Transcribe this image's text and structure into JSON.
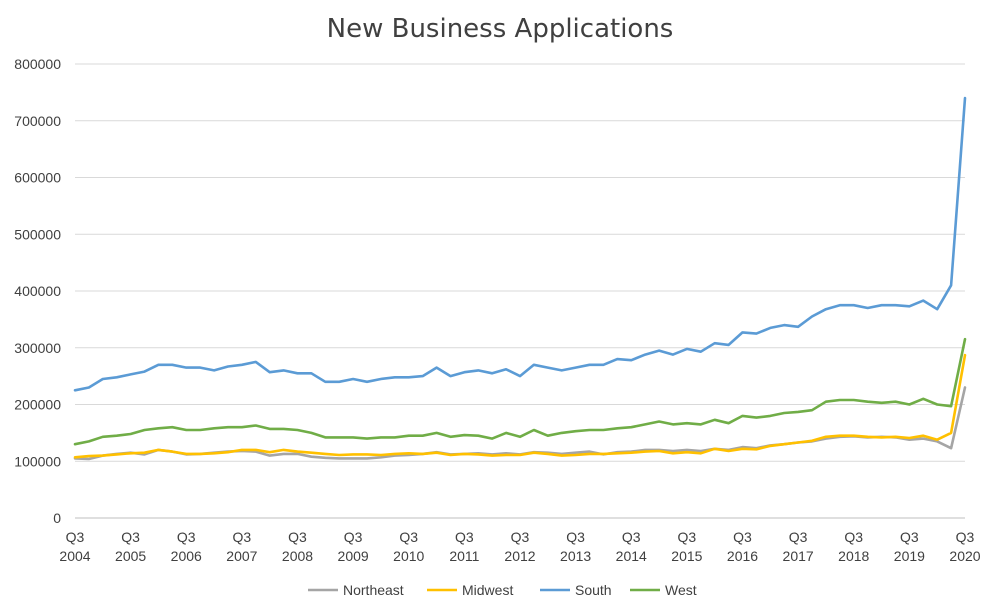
{
  "chart_data": {
    "type": "line",
    "title": "New Business Applications",
    "xlabel": "",
    "ylabel": "",
    "ylim": [
      0,
      800000
    ],
    "y_ticks": [
      "0",
      "100000",
      "200000",
      "300000",
      "400000",
      "500000",
      "600000",
      "700000",
      "800000"
    ],
    "x_tick_labels": [
      [
        "Q3",
        "2004"
      ],
      [
        "Q3",
        "2005"
      ],
      [
        "Q3",
        "2006"
      ],
      [
        "Q3",
        "2007"
      ],
      [
        "Q3",
        "2008"
      ],
      [
        "Q3",
        "2009"
      ],
      [
        "Q3",
        "2010"
      ],
      [
        "Q3",
        "2011"
      ],
      [
        "Q3",
        "2012"
      ],
      [
        "Q3",
        "2013"
      ],
      [
        "Q3",
        "2014"
      ],
      [
        "Q3",
        "2015"
      ],
      [
        "Q3",
        "2016"
      ],
      [
        "Q3",
        "2017"
      ],
      [
        "Q3",
        "2018"
      ],
      [
        "Q3",
        "2019"
      ],
      [
        "Q3",
        "2020"
      ]
    ],
    "grid": "horizontal",
    "legend_position": "bottom",
    "x": [
      "2004 Q3",
      "2004 Q4",
      "2005 Q1",
      "2005 Q2",
      "2005 Q3",
      "2005 Q4",
      "2006 Q1",
      "2006 Q2",
      "2006 Q3",
      "2006 Q4",
      "2007 Q1",
      "2007 Q2",
      "2007 Q3",
      "2007 Q4",
      "2008 Q1",
      "2008 Q2",
      "2008 Q3",
      "2008 Q4",
      "2009 Q1",
      "2009 Q2",
      "2009 Q3",
      "2009 Q4",
      "2010 Q1",
      "2010 Q2",
      "2010 Q3",
      "2010 Q4",
      "2011 Q1",
      "2011 Q2",
      "2011 Q3",
      "2011 Q4",
      "2012 Q1",
      "2012 Q2",
      "2012 Q3",
      "2012 Q4",
      "2013 Q1",
      "2013 Q2",
      "2013 Q3",
      "2013 Q4",
      "2014 Q1",
      "2014 Q2",
      "2014 Q3",
      "2014 Q4",
      "2015 Q1",
      "2015 Q2",
      "2015 Q3",
      "2015 Q4",
      "2016 Q1",
      "2016 Q2",
      "2016 Q3",
      "2016 Q4",
      "2017 Q1",
      "2017 Q2",
      "2017 Q3",
      "2017 Q4",
      "2018 Q1",
      "2018 Q2",
      "2018 Q3",
      "2018 Q4",
      "2019 Q1",
      "2019 Q2",
      "2019 Q3",
      "2019 Q4",
      "2020 Q1",
      "2020 Q2",
      "2020 Q3"
    ],
    "series": [
      {
        "name": "Northeast",
        "color": "#a5a5a5",
        "values": [
          105000,
          104000,
          110000,
          113000,
          115000,
          112000,
          120000,
          117000,
          112000,
          113000,
          115000,
          117000,
          118000,
          117000,
          110000,
          113000,
          113000,
          108000,
          106000,
          105000,
          105000,
          105000,
          107000,
          110000,
          111000,
          113000,
          116000,
          112000,
          113000,
          114000,
          112000,
          114000,
          112000,
          116000,
          115000,
          113000,
          115000,
          117000,
          112000,
          116000,
          117000,
          120000,
          120000,
          118000,
          120000,
          118000,
          122000,
          120000,
          125000,
          123000,
          128000,
          130000,
          133000,
          135000,
          140000,
          143000,
          144000,
          142000,
          143000,
          142000,
          138000,
          140000,
          135000,
          123000,
          230000
        ]
      },
      {
        "name": "Midwest",
        "color": "#ffc000",
        "values": [
          107000,
          109000,
          110000,
          112000,
          114000,
          115000,
          120000,
          117000,
          113000,
          113000,
          114000,
          116000,
          120000,
          120000,
          116000,
          120000,
          117000,
          115000,
          113000,
          111000,
          112000,
          112000,
          111000,
          113000,
          114000,
          113000,
          115000,
          111000,
          113000,
          112000,
          110000,
          111000,
          111000,
          115000,
          113000,
          110000,
          111000,
          113000,
          113000,
          114000,
          115000,
          117000,
          118000,
          114000,
          116000,
          114000,
          122000,
          118000,
          122000,
          121000,
          127000,
          130000,
          133000,
          136000,
          143000,
          145000,
          145000,
          143000,
          142000,
          143000,
          141000,
          145000,
          138000,
          150000,
          287000
        ]
      },
      {
        "name": "South",
        "color": "#5b9bd5",
        "values": [
          225000,
          230000,
          245000,
          248000,
          253000,
          258000,
          270000,
          270000,
          265000,
          265000,
          260000,
          267000,
          270000,
          275000,
          257000,
          260000,
          255000,
          255000,
          240000,
          240000,
          245000,
          240000,
          245000,
          248000,
          248000,
          250000,
          265000,
          250000,
          257000,
          260000,
          255000,
          262000,
          250000,
          270000,
          265000,
          260000,
          265000,
          270000,
          270000,
          280000,
          278000,
          288000,
          295000,
          288000,
          298000,
          293000,
          308000,
          305000,
          327000,
          325000,
          335000,
          340000,
          337000,
          355000,
          368000,
          375000,
          375000,
          370000,
          375000,
          375000,
          373000,
          383000,
          368000,
          410000,
          740000
        ]
      },
      {
        "name": "West",
        "color": "#70ad47",
        "values": [
          130000,
          135000,
          143000,
          145000,
          148000,
          155000,
          158000,
          160000,
          155000,
          155000,
          158000,
          160000,
          160000,
          163000,
          157000,
          157000,
          155000,
          150000,
          142000,
          142000,
          142000,
          140000,
          142000,
          142000,
          145000,
          145000,
          150000,
          143000,
          146000,
          145000,
          140000,
          150000,
          143000,
          155000,
          145000,
          150000,
          153000,
          155000,
          155000,
          158000,
          160000,
          165000,
          170000,
          165000,
          167000,
          165000,
          173000,
          167000,
          180000,
          177000,
          180000,
          185000,
          187000,
          190000,
          205000,
          208000,
          208000,
          205000,
          203000,
          205000,
          200000,
          210000,
          200000,
          197000,
          315000
        ]
      }
    ]
  }
}
